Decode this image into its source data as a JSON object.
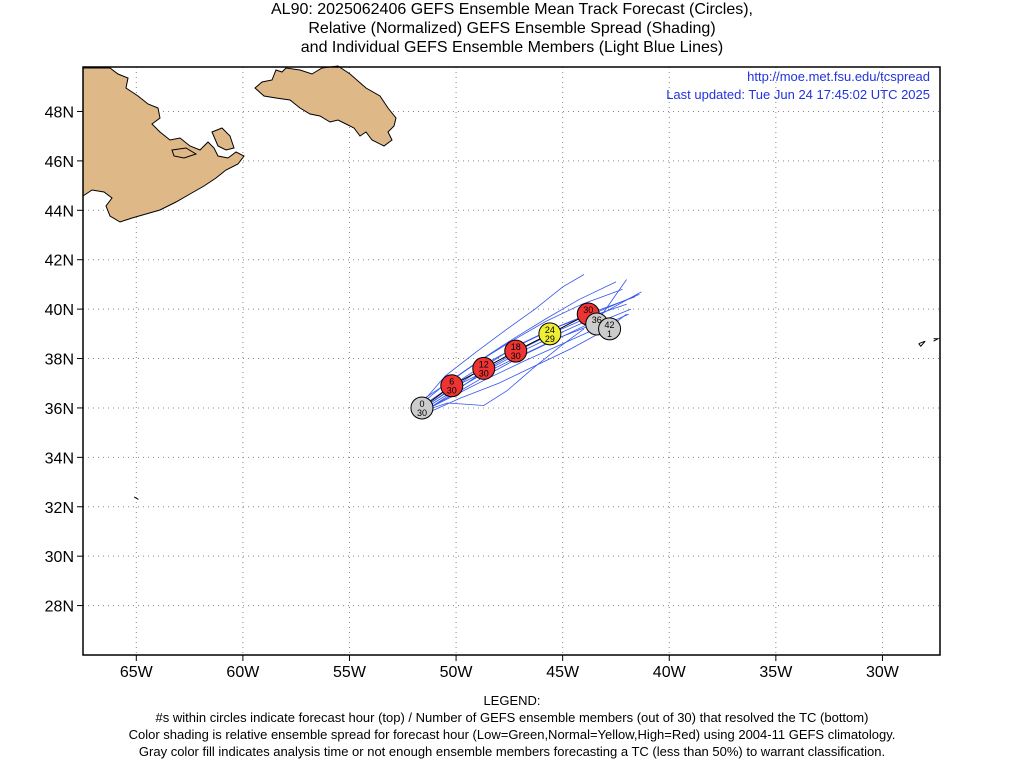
{
  "title": {
    "line1": "AL90: 2025062406 GEFS Ensemble Mean Track Forecast (Circles),",
    "line2": "Relative (Normalized) GEFS Ensemble Spread (Shading)",
    "line3": "and Individual GEFS Ensemble Members (Light Blue Lines)"
  },
  "credits": {
    "url": "http://moe.met.fsu.edu/tcspread",
    "updated": "Last updated: Tue Jun 24 17:45:02 UTC 2025"
  },
  "map": {
    "lon_range": [
      -67.5,
      -27.3
    ],
    "lat_range": [
      26.0,
      49.8
    ],
    "lon_ticks": [
      {
        "value": -65,
        "label": "65W"
      },
      {
        "value": -60,
        "label": "60W"
      },
      {
        "value": -55,
        "label": "55W"
      },
      {
        "value": -50,
        "label": "50W"
      },
      {
        "value": -45,
        "label": "45W"
      },
      {
        "value": -40,
        "label": "40W"
      },
      {
        "value": -35,
        "label": "35W"
      },
      {
        "value": -30,
        "label": "30W"
      }
    ],
    "lat_ticks": [
      {
        "value": 48,
        "label": "48N"
      },
      {
        "value": 46,
        "label": "46N"
      },
      {
        "value": 44,
        "label": "44N"
      },
      {
        "value": 42,
        "label": "42N"
      },
      {
        "value": 40,
        "label": "40N"
      },
      {
        "value": 38,
        "label": "38N"
      },
      {
        "value": 36,
        "label": "36N"
      },
      {
        "value": 34,
        "label": "34N"
      },
      {
        "value": 32,
        "label": "32N"
      },
      {
        "value": 30,
        "label": "30N"
      },
      {
        "value": 28,
        "label": "28N"
      }
    ],
    "grid": "dotted",
    "land_color": "#deb887",
    "member_line_color": "#3355ee"
  },
  "track": [
    {
      "hour": "0",
      "members": "30",
      "lon": -51.6,
      "lat": 36.0,
      "color": "#cccccc"
    },
    {
      "hour": "6",
      "members": "30",
      "lon": -50.2,
      "lat": 36.9,
      "color": "#ee3333"
    },
    {
      "hour": "12",
      "members": "30",
      "lon": -48.7,
      "lat": 37.6,
      "color": "#ee3333"
    },
    {
      "hour": "18",
      "members": "30",
      "lon": -47.2,
      "lat": 38.3,
      "color": "#ee3333"
    },
    {
      "hour": "24",
      "members": "29",
      "lon": -45.6,
      "lat": 39.0,
      "color": "#eeee33"
    },
    {
      "hour": "30",
      "members": "",
      "lon": -43.8,
      "lat": 39.8,
      "color": "#ee3333"
    },
    {
      "hour": "36",
      "members": "",
      "lon": -43.4,
      "lat": 39.4,
      "color": "#cccccc"
    },
    {
      "hour": "42",
      "members": "1",
      "lon": -42.8,
      "lat": 39.2,
      "color": "#cccccc"
    }
  ],
  "member_tracks": [
    [
      [
        -51.8,
        35.8
      ],
      [
        -50.3,
        36.6
      ],
      [
        -48.7,
        37.4
      ],
      [
        -47.0,
        38.1
      ],
      [
        -45.3,
        38.8
      ],
      [
        -43.5,
        39.4
      ],
      [
        -41.8,
        40.0
      ]
    ],
    [
      [
        -51.9,
        35.9
      ],
      [
        -50.2,
        36.9
      ],
      [
        -48.6,
        37.8
      ],
      [
        -46.9,
        38.6
      ],
      [
        -45.2,
        39.3
      ],
      [
        -43.5,
        39.9
      ],
      [
        -41.6,
        40.5
      ]
    ],
    [
      [
        -51.7,
        35.8
      ],
      [
        -50.1,
        36.5
      ],
      [
        -48.5,
        37.2
      ],
      [
        -46.8,
        37.9
      ],
      [
        -45.0,
        38.6
      ],
      [
        -43.2,
        39.3
      ],
      [
        -41.9,
        39.8
      ]
    ],
    [
      [
        -52.0,
        36.1
      ],
      [
        -50.4,
        37.0
      ],
      [
        -48.9,
        37.9
      ],
      [
        -47.4,
        38.7
      ],
      [
        -45.8,
        39.5
      ],
      [
        -44.1,
        40.2
      ],
      [
        -42.2,
        40.8
      ]
    ],
    [
      [
        -51.8,
        36.0
      ],
      [
        -50.5,
        37.3
      ],
      [
        -49.0,
        38.3
      ],
      [
        -47.6,
        39.2
      ],
      [
        -46.3,
        40.0
      ],
      [
        -45.0,
        40.9
      ],
      [
        -44.0,
        41.4
      ]
    ],
    [
      [
        -51.6,
        35.7
      ],
      [
        -49.8,
        36.4
      ],
      [
        -48.0,
        37.0
      ],
      [
        -46.3,
        37.7
      ],
      [
        -44.6,
        38.4
      ],
      [
        -42.9,
        39.2
      ],
      [
        -42.0,
        39.8
      ]
    ],
    [
      [
        -51.9,
        35.8
      ],
      [
        -50.3,
        36.7
      ],
      [
        -48.8,
        37.6
      ],
      [
        -47.2,
        38.5
      ],
      [
        -45.5,
        39.2
      ],
      [
        -43.6,
        39.8
      ],
      [
        -41.4,
        40.6
      ]
    ],
    [
      [
        -51.7,
        35.9
      ],
      [
        -50.2,
        36.8
      ],
      [
        -48.6,
        37.5
      ],
      [
        -46.9,
        38.3
      ],
      [
        -45.2,
        39.0
      ],
      [
        -43.4,
        39.7
      ],
      [
        -41.3,
        40.7
      ]
    ],
    [
      [
        -51.5,
        35.9
      ],
      [
        -50.0,
        36.6
      ],
      [
        -48.4,
        37.4
      ],
      [
        -46.7,
        38.2
      ],
      [
        -45.0,
        38.9
      ],
      [
        -43.3,
        39.6
      ],
      [
        -42.0,
        41.2
      ]
    ],
    [
      [
        -51.8,
        35.8
      ],
      [
        -50.4,
        36.2
      ],
      [
        -48.7,
        36.1
      ],
      [
        -47.6,
        36.7
      ],
      [
        -46.4,
        37.6
      ],
      [
        -45.1,
        38.5
      ],
      [
        -44.0,
        39.2
      ]
    ],
    [
      [
        -52.0,
        35.9
      ],
      [
        -50.6,
        36.9
      ],
      [
        -49.1,
        37.8
      ],
      [
        -47.5,
        38.7
      ],
      [
        -45.8,
        39.6
      ],
      [
        -44.2,
        40.4
      ],
      [
        -42.5,
        41.1
      ]
    ],
    [
      [
        -51.6,
        35.8
      ],
      [
        -50.0,
        36.7
      ],
      [
        -48.5,
        37.6
      ],
      [
        -46.9,
        38.4
      ],
      [
        -45.3,
        39.1
      ],
      [
        -43.7,
        39.7
      ],
      [
        -42.0,
        40.2
      ]
    ]
  ],
  "isolated_land": [
    [
      [
        -28.3,
        38.6
      ],
      [
        -28.0,
        38.7
      ],
      [
        -28.2,
        38.5
      ],
      [
        -28.3,
        38.6
      ]
    ],
    [
      [
        -27.6,
        38.7
      ],
      [
        -27.4,
        38.8
      ],
      [
        -27.6,
        38.8
      ]
    ],
    [
      [
        -65.1,
        32.4
      ],
      [
        -64.9,
        32.3
      ]
    ]
  ],
  "legend": {
    "heading": "LEGEND:",
    "line1": "#s within circles indicate forecast hour (top) / Number of GEFS ensemble members (out of 30) that resolved the TC (bottom)",
    "line2": "Color shading is relative ensemble spread for forecast hour (Low=Green,Normal=Yellow,High=Red) using 2004-11 GEFS climatology.",
    "line3": "Gray color fill indicates analysis time or not enough ensemble members forecasting a TC (less than 50%) to warrant classification."
  }
}
